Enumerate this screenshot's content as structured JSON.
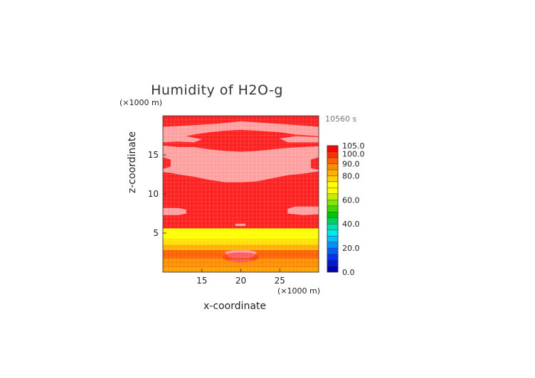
{
  "chart_data": {
    "type": "heatmap",
    "title": "Humidity of H2O-g",
    "time_label": "10560 s",
    "xlabel": "x-coordinate",
    "ylabel": "z-coordinate",
    "x_unit": "(×1000 m)",
    "y_unit": "(×1000 m)",
    "xlim": [
      10,
      30
    ],
    "ylim": [
      0,
      20
    ],
    "x_ticks": [
      15,
      20,
      25
    ],
    "y_ticks": [
      5,
      10,
      15
    ],
    "colorbar": {
      "levels": [
        0,
        5,
        10,
        15,
        20,
        25,
        30,
        35,
        40,
        45,
        50,
        55,
        60,
        65,
        70,
        75,
        80,
        85,
        90,
        95,
        100,
        105
      ],
      "labels": [
        "0.0",
        "20.0",
        "40.0",
        "60.0",
        "80.0",
        "90.0",
        "100.0",
        "105.0"
      ],
      "label_values": [
        0,
        20,
        40,
        60,
        80,
        90,
        100,
        105
      ],
      "colors": [
        "#0000b4",
        "#0018d8",
        "#0034f0",
        "#0060ff",
        "#0090ff",
        "#00c0ff",
        "#00e8e8",
        "#00e0b0",
        "#00d060",
        "#00c800",
        "#40d800",
        "#80e800",
        "#c0f000",
        "#ffff00",
        "#ffff00",
        "#ffd000",
        "#ffb000",
        "#ff8c00",
        "#ff6000",
        "#ff3000",
        "#ff0000",
        "#ffffff"
      ]
    },
    "field": {
      "base_level_color": "#ff2020",
      "bands": [
        {
          "z_from": 0,
          "z_to": 0.6,
          "color": "#ffa000"
        },
        {
          "z_from": 0.6,
          "z_to": 1.8,
          "color": "#ff8c00"
        },
        {
          "z_from": 1.8,
          "z_to": 2.8,
          "color": "#ff6000"
        },
        {
          "z_from": 2.8,
          "z_to": 3.5,
          "color": "#ffb000"
        },
        {
          "z_from": 3.5,
          "z_to": 4.2,
          "color": "#ffe000"
        },
        {
          "z_from": 4.2,
          "z_to": 5.6,
          "color": "#ffff00"
        }
      ],
      "saturated_color": "#ff2020",
      "supersaturated_color": "#ffa0a0"
    }
  }
}
